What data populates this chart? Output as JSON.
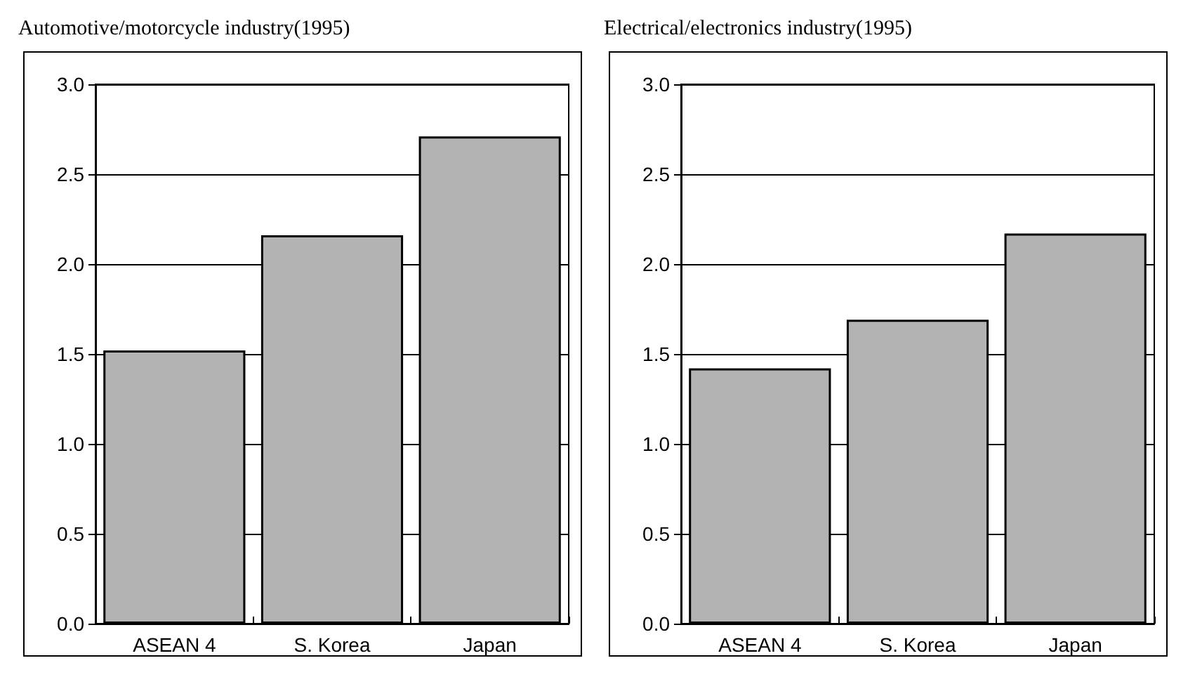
{
  "chart_data": [
    {
      "type": "bar",
      "title": "Automotive/motorcycle industry(1995)",
      "categories": [
        "ASEAN 4",
        "S. Korea",
        "Japan"
      ],
      "values": [
        1.52,
        2.16,
        2.71
      ],
      "color": "#b3b3b3",
      "ylim": [
        0,
        3
      ],
      "yticks": [
        {
          "value": 0,
          "label": "0.0"
        },
        {
          "value": 0.5,
          "label": "0.5"
        },
        {
          "value": 1,
          "label": "1.0"
        },
        {
          "value": 1.5,
          "label": "1.5"
        },
        {
          "value": 2,
          "label": "2.0"
        },
        {
          "value": 2.5,
          "label": "2.5"
        },
        {
          "value": 3,
          "label": "3.0"
        }
      ],
      "grid": "y"
    },
    {
      "type": "bar",
      "title": "Electrical/electronics industry(1995)",
      "categories": [
        "ASEAN 4",
        "S. Korea",
        "Japan"
      ],
      "values": [
        1.42,
        1.69,
        2.17
      ],
      "color": "#b3b3b3",
      "ylim": [
        0,
        3
      ],
      "yticks": [
        {
          "value": 0,
          "label": "0.0"
        },
        {
          "value": 0.5,
          "label": "0.5"
        },
        {
          "value": 1,
          "label": "1.0"
        },
        {
          "value": 1.5,
          "label": "1.5"
        },
        {
          "value": 2,
          "label": "2.0"
        },
        {
          "value": 2.5,
          "label": "2.5"
        },
        {
          "value": 3,
          "label": "3.0"
        }
      ],
      "grid": "y"
    }
  ]
}
